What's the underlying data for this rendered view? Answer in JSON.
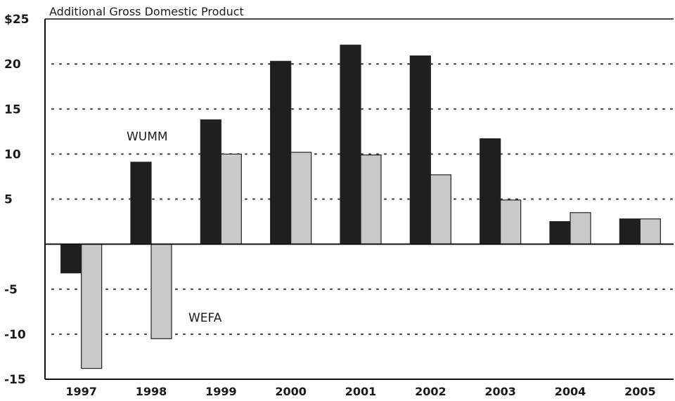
{
  "chart_data": {
    "type": "bar",
    "title": "",
    "ylabel": "Additional Gross Domestic Product",
    "xlabel": "",
    "categories": [
      "1997",
      "1998",
      "1999",
      "2000",
      "2001",
      "2002",
      "2003",
      "2004",
      "2005"
    ],
    "series": [
      {
        "name": "WUMM",
        "values": [
          -3.2,
          9.1,
          13.8,
          20.3,
          22.1,
          20.9,
          11.7,
          2.5,
          2.8
        ]
      },
      {
        "name": "WEFA",
        "values": [
          -13.8,
          -10.5,
          10.0,
          10.2,
          9.9,
          7.7,
          4.9,
          3.5,
          2.8
        ]
      }
    ],
    "ylim": [
      -15,
      25
    ],
    "yticks": [
      -15,
      -10,
      -5,
      0,
      5,
      10,
      15,
      20,
      25
    ],
    "ytick_labels": [
      "-15",
      "-10",
      "-5",
      "",
      "5",
      "10",
      "15",
      "20",
      "$25"
    ],
    "grid": "dotted horizontal",
    "legend": "inline labels",
    "colors": {
      "WUMM": "#1f1f1f",
      "WEFA": "#c9c9c9",
      "background": "#ffffff"
    }
  }
}
